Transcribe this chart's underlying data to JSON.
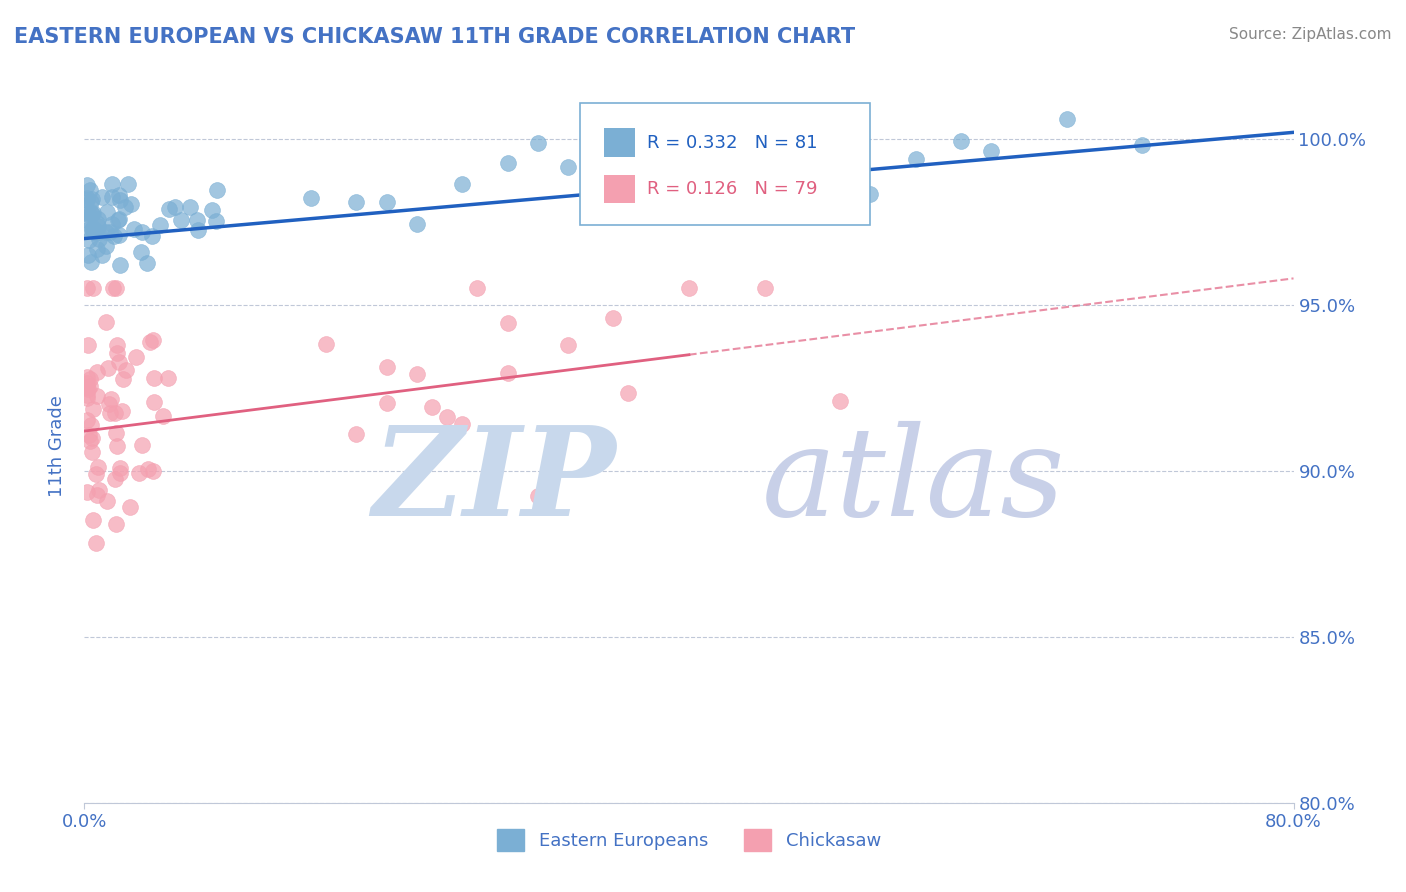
{
  "title": "EASTERN EUROPEAN VS CHICKASAW 11TH GRADE CORRELATION CHART",
  "source": "Source: ZipAtlas.com",
  "ylabel_label": "11th Grade",
  "legend_blue_label": "Eastern Europeans",
  "legend_pink_label": "Chickasaw",
  "r_blue": 0.332,
  "n_blue": 81,
  "r_pink": 0.126,
  "n_pink": 79,
  "blue_color": "#7BAFD4",
  "pink_color": "#F4A0B0",
  "blue_line_color": "#2060C0",
  "pink_line_color": "#E06080",
  "watermark_zip_color": "#C8D8EC",
  "watermark_atlas_color": "#C8D0E8",
  "title_color": "#4472C4",
  "axis_color": "#4472C4",
  "grid_color": "#C0C8D8",
  "x_min": 0.0,
  "x_max": 80.0,
  "y_min": 80.0,
  "y_max": 101.5,
  "blue_trend_x0": 0.0,
  "blue_trend_y0": 97.0,
  "blue_trend_x1": 80.0,
  "blue_trend_y1": 100.2,
  "pink_trend_x0": 0.0,
  "pink_trend_y0": 91.2,
  "pink_trend_x1": 40.0,
  "pink_trend_y1": 93.5,
  "pink_dash_x0": 40.0,
  "pink_dash_y0": 93.5,
  "pink_dash_x1": 80.0,
  "pink_dash_y1": 95.8
}
